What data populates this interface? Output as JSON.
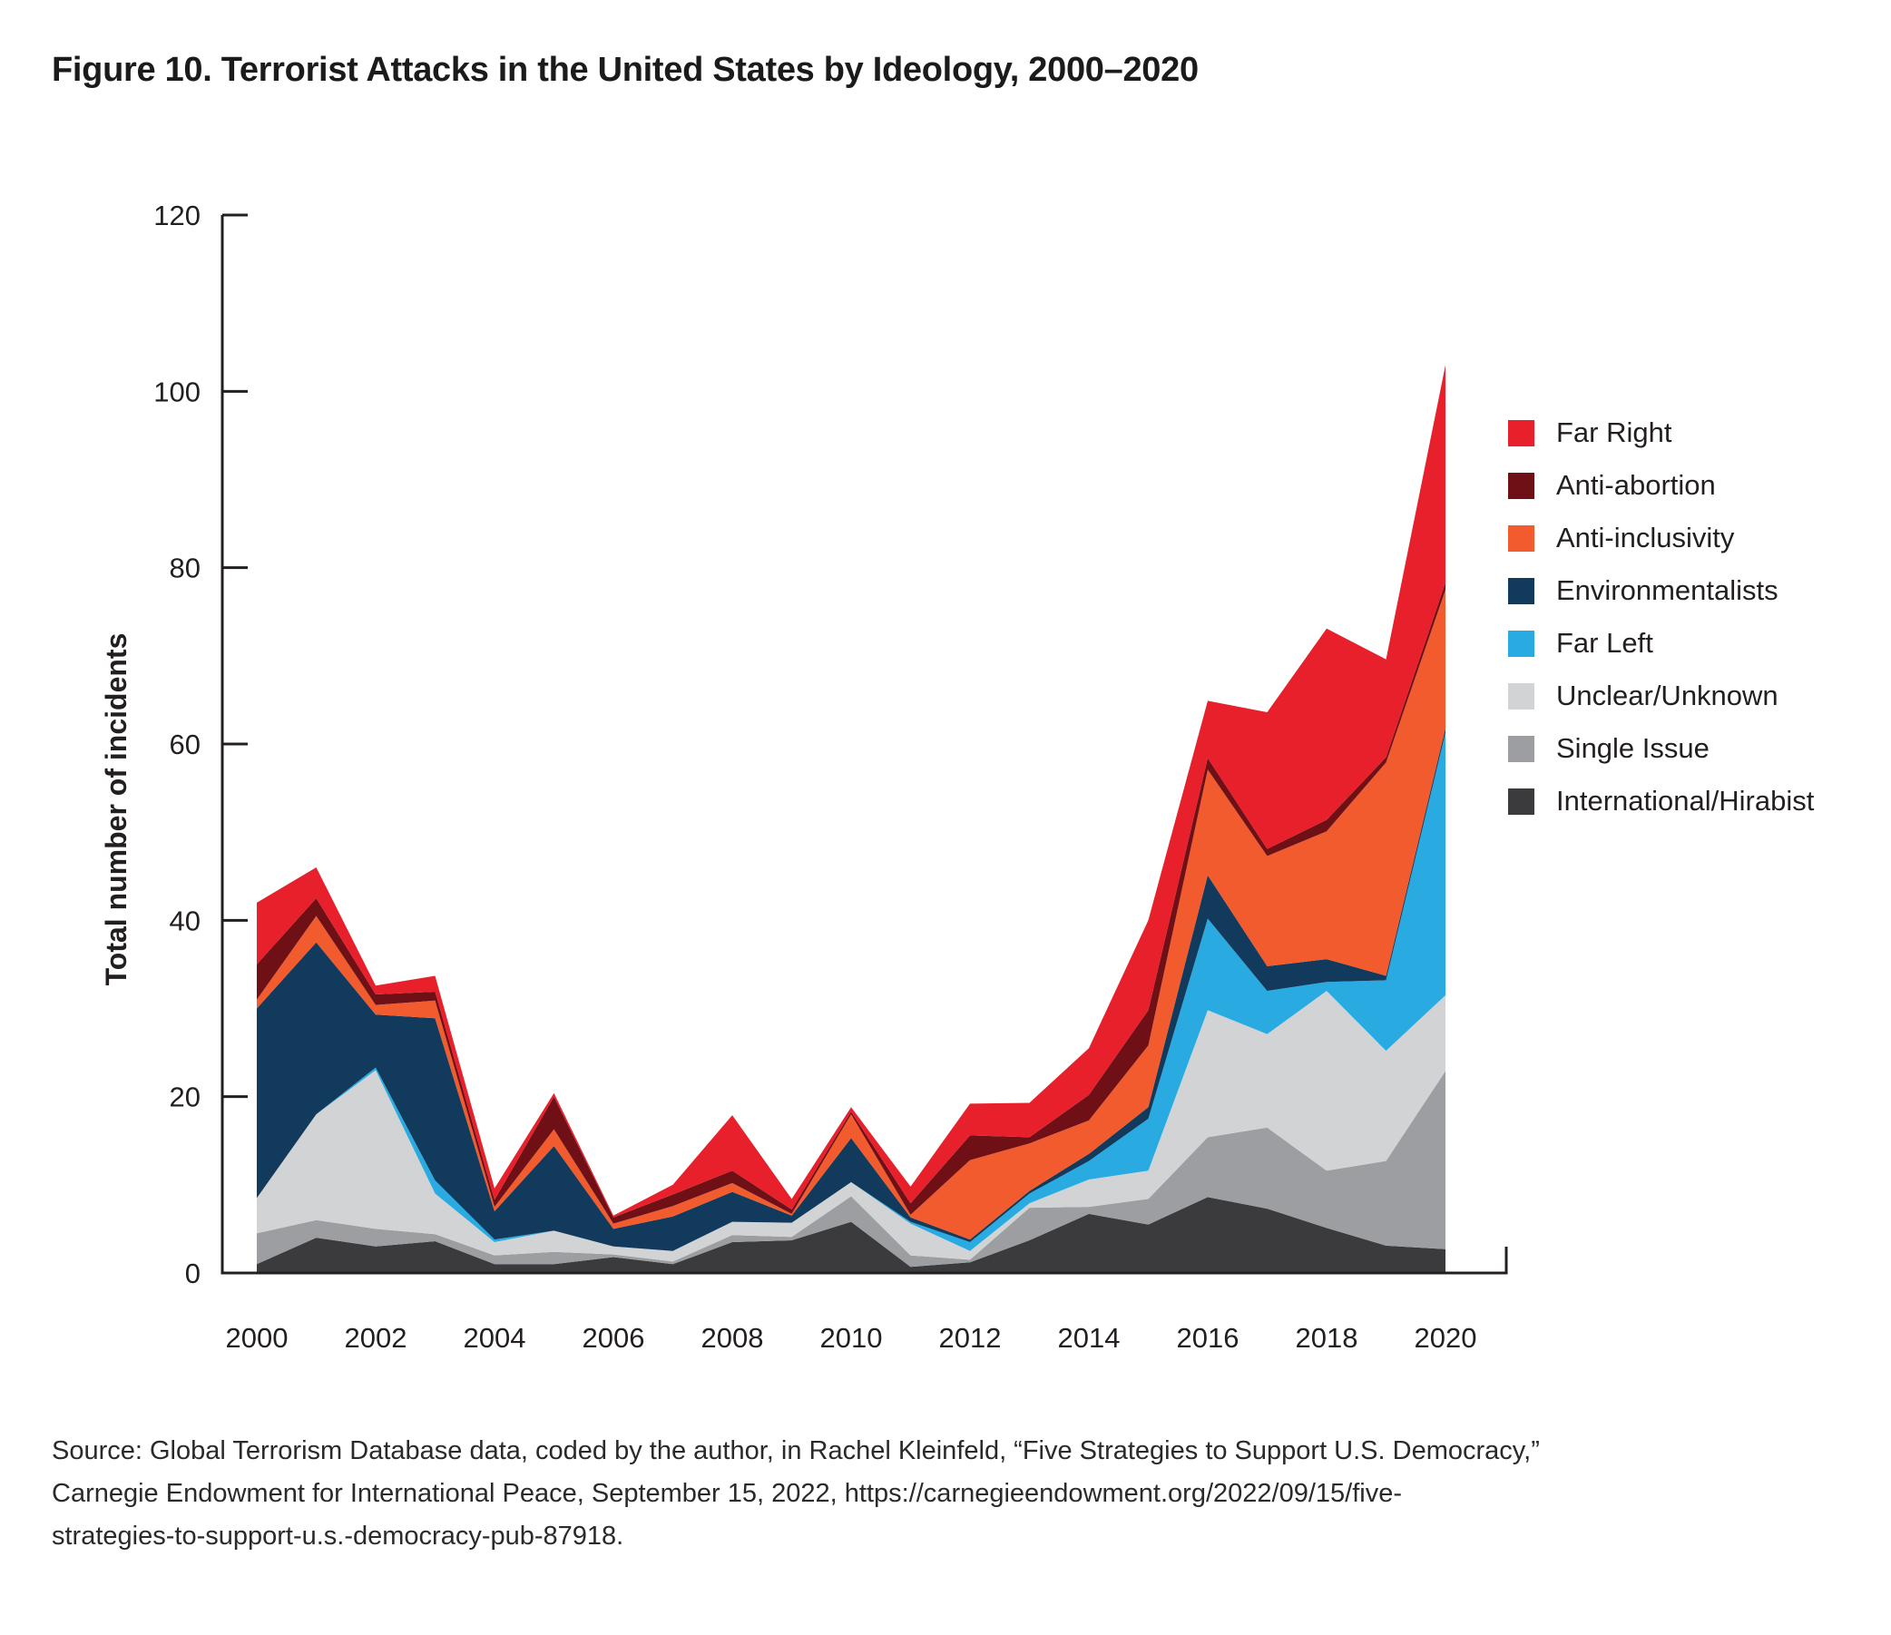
{
  "title": "Figure 10. Terrorist Attacks in the United States by Ideology, 2000–2020",
  "source_lines": [
    "Source: Global Terrorism Database data, coded by the author, in Rachel Kleinfeld, “Five Strategies to Support U.S. Democracy,”",
    "Carnegie Endowment for International Peace, September 15, 2022, https://carnegieendowment.org/2022/09/15/five-",
    "strategies-to-support-u.s.-democracy-pub-87918."
  ],
  "colors": {
    "axis": "#231F20",
    "text": "#231F20",
    "background": "#FFFFFF"
  },
  "chart_data": {
    "type": "area",
    "stacked": true,
    "title": "",
    "xlabel": "",
    "ylabel": "Total number of incidents",
    "ylim": [
      0,
      120
    ],
    "y_ticks": [
      0,
      20,
      40,
      60,
      80,
      100,
      120
    ],
    "x": [
      2000,
      2001,
      2002,
      2003,
      2004,
      2005,
      2006,
      2007,
      2008,
      2009,
      2010,
      2011,
      2012,
      2013,
      2014,
      2015,
      2016,
      2017,
      2018,
      2019,
      2020
    ],
    "x_tick_labels": [
      "2000",
      "2002",
      "2004",
      "2006",
      "2008",
      "2010",
      "2012",
      "2014",
      "2016",
      "2018",
      "2020"
    ],
    "grid": false,
    "legend_position": "right",
    "stack_note": "series listed in legend order (top of stack first); stacked bottom-to-top in reverse list order",
    "series": [
      {
        "name": "Far Right",
        "color": "#E8202C",
        "values": [
          7,
          3.5,
          1,
          1.8,
          1.3,
          0.4,
          0.2,
          1.1,
          6.3,
          1.2,
          0.5,
          1.9,
          3.6,
          3.9,
          5.3,
          10.2,
          6.5,
          15.5,
          21.7,
          11.1,
          24.7
        ]
      },
      {
        "name": "Anti-abortion",
        "color": "#6E1016",
        "values": [
          4,
          2,
          1.2,
          1,
          0.8,
          3.7,
          0.7,
          1.3,
          1.4,
          0.5,
          0.3,
          1.3,
          2.8,
          0.7,
          2.9,
          4,
          1.3,
          0.8,
          1.3,
          0.6,
          0.8
        ]
      },
      {
        "name": "Anti-inclusivity",
        "color": "#F15B2E",
        "values": [
          1,
          3,
          1.1,
          2,
          0.5,
          1.9,
          0.6,
          1.2,
          1,
          0.2,
          2.7,
          0.3,
          9,
          5.4,
          3.8,
          7,
          12,
          12.5,
          14.5,
          24.2,
          15.7
        ]
      },
      {
        "name": "Environmentalists",
        "color": "#123A5C",
        "values": [
          21.5,
          19.5,
          6,
          18.4,
          3.2,
          9.6,
          2,
          3.9,
          3.4,
          0.8,
          5,
          0.5,
          0.3,
          0.3,
          0.8,
          1.3,
          4.9,
          2.8,
          2.6,
          0.5,
          0.5
        ]
      },
      {
        "name": "Far Left",
        "color": "#29ABE2",
        "values": [
          0,
          0,
          0.3,
          1.5,
          0.3,
          0,
          0,
          0,
          0,
          0,
          0,
          0.2,
          1,
          1.1,
          2.1,
          5.9,
          10.4,
          4.9,
          1,
          8,
          29.8
        ]
      },
      {
        "name": "Unclear/Unknown",
        "color": "#D2D3D5",
        "values": [
          4,
          12,
          18,
          4.6,
          1.5,
          2.4,
          0.9,
          1.2,
          1.5,
          1.6,
          1.6,
          3.6,
          1,
          0.5,
          3.1,
          3.2,
          14.4,
          10.6,
          20.4,
          12.5,
          8.6
        ]
      },
      {
        "name": "Single Issue",
        "color": "#9C9EA1",
        "values": [
          3.5,
          2,
          2,
          0.8,
          1,
          1.4,
          0.3,
          0.3,
          0.8,
          0.4,
          2.9,
          1.3,
          0.3,
          3.7,
          0.8,
          2.9,
          6.8,
          9.2,
          6.5,
          9.6,
          20.2
        ]
      },
      {
        "name": "International/Hirabist",
        "color": "#3B3B3D",
        "values": [
          1,
          4,
          3,
          3.6,
          1,
          1,
          1.8,
          1,
          3.5,
          3.7,
          5.8,
          0.7,
          1.2,
          3.7,
          6.7,
          5.5,
          8.6,
          7.3,
          5.1,
          3.1,
          2.7
        ]
      }
    ]
  }
}
